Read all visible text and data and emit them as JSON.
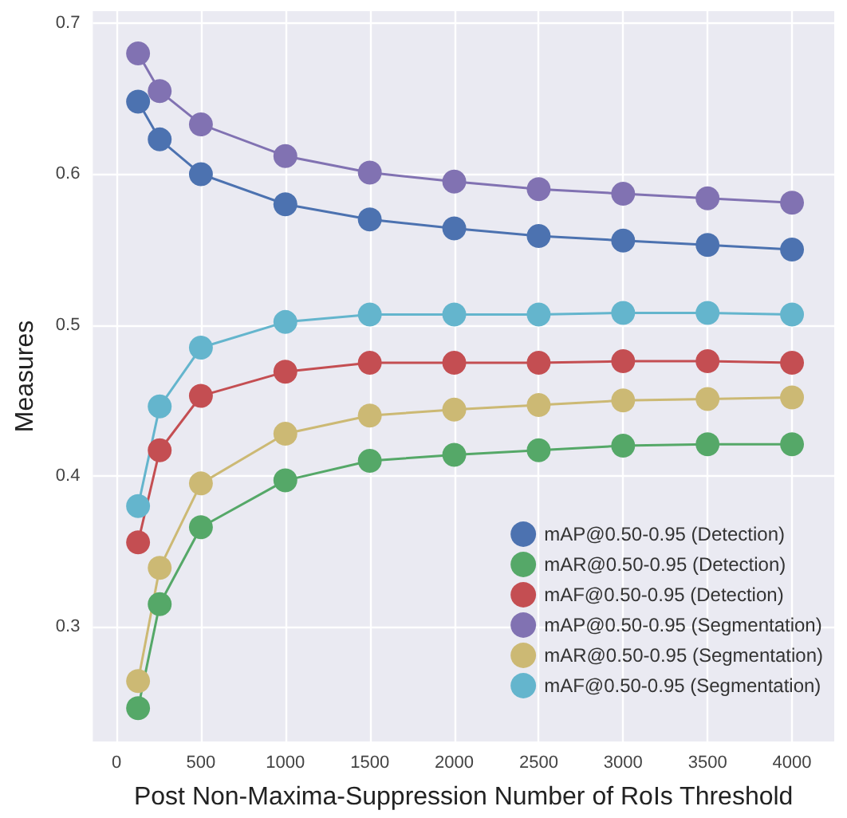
{
  "chart_data": {
    "type": "line",
    "xlabel": "Post Non-Maxima-Suppression Number of RoIs Threshold",
    "ylabel": "Measures",
    "x": [
      128,
      256,
      500,
      1000,
      1500,
      2000,
      2500,
      3000,
      3500,
      4000
    ],
    "series": [
      {
        "name": "mAP@0.50-0.95 (Detection)",
        "color": "#4c72b0",
        "values": [
          0.648,
          0.623,
          0.6,
          0.58,
          0.57,
          0.564,
          0.559,
          0.556,
          0.553,
          0.55
        ]
      },
      {
        "name": "mAR@0.50-0.95 (Detection)",
        "color": "#55a868",
        "values": [
          0.246,
          0.315,
          0.366,
          0.397,
          0.41,
          0.414,
          0.417,
          0.42,
          0.421,
          0.421
        ]
      },
      {
        "name": "mAF@0.50-0.95 (Detection)",
        "color": "#c44e52",
        "values": [
          0.356,
          0.417,
          0.453,
          0.469,
          0.475,
          0.475,
          0.475,
          0.476,
          0.476,
          0.475
        ]
      },
      {
        "name": "mAP@0.50-0.95 (Segmentation)",
        "color": "#8172b2",
        "values": [
          0.68,
          0.655,
          0.633,
          0.612,
          0.601,
          0.595,
          0.59,
          0.587,
          0.584,
          0.581
        ]
      },
      {
        "name": "mAR@0.50-0.95 (Segmentation)",
        "color": "#ccb974",
        "values": [
          0.264,
          0.339,
          0.395,
          0.428,
          0.44,
          0.444,
          0.447,
          0.45,
          0.451,
          0.452
        ]
      },
      {
        "name": "mAF@0.50-0.95 (Segmentation)",
        "color": "#64b5cd",
        "values": [
          0.38,
          0.446,
          0.485,
          0.502,
          0.507,
          0.507,
          0.507,
          0.508,
          0.508,
          0.507
        ]
      }
    ],
    "xlim": [
      -140,
      4250
    ],
    "xticks": [
      0,
      500,
      1000,
      1500,
      2000,
      2500,
      3000,
      3500,
      4000
    ],
    "ylim": [
      0.224,
      0.708
    ],
    "yticks": [
      0.3,
      0.4,
      0.5,
      0.6,
      0.7
    ],
    "grid": true,
    "legend": "bottom right",
    "marker": "circle",
    "line_style": "solid"
  }
}
